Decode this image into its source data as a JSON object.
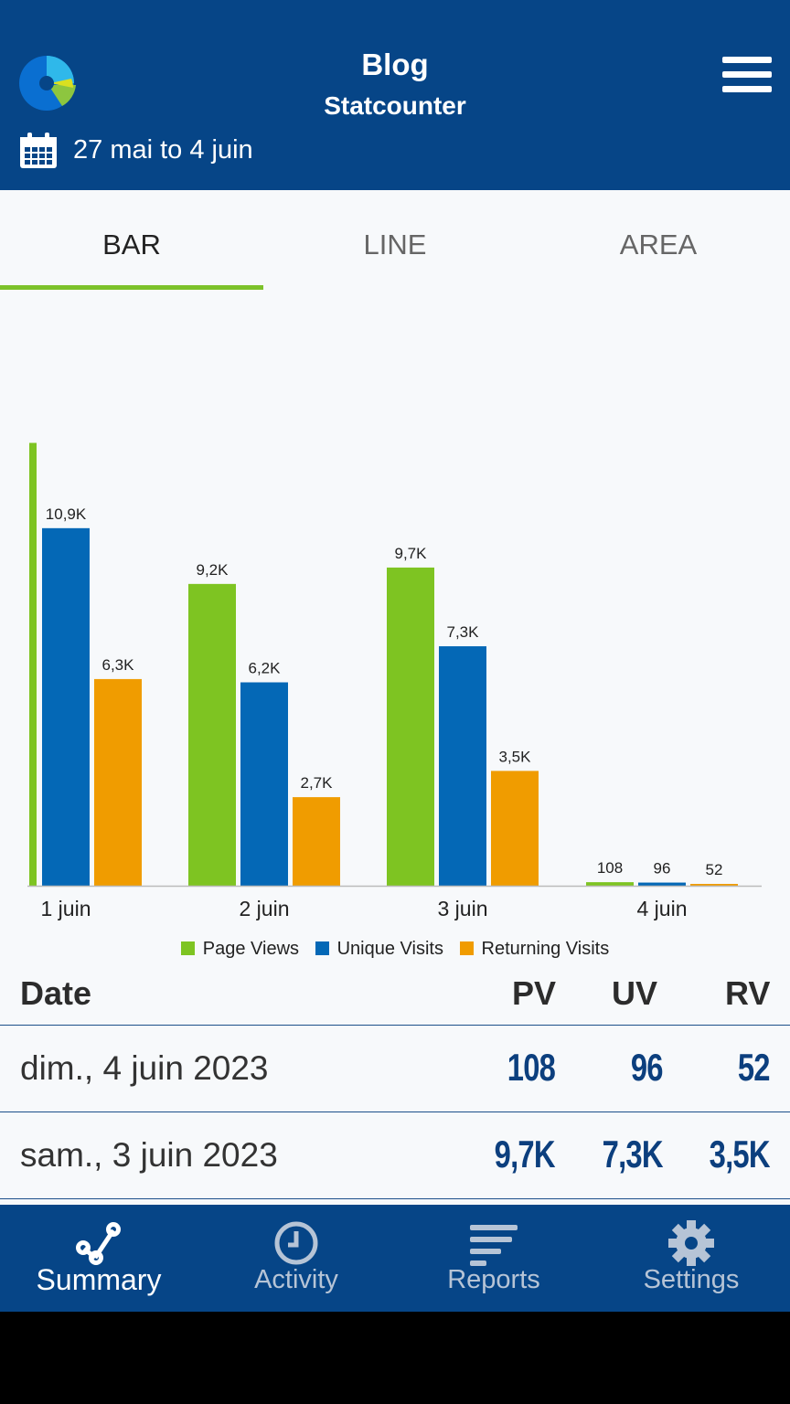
{
  "header": {
    "title": "Blog",
    "subtitle": "Statcounter",
    "date_range": "27 mai to 4 juin",
    "colors": {
      "background": "#064587",
      "logo_blue": "#0a6fd1",
      "logo_light": "#2fb8ea",
      "logo_green": "#8dc63f"
    }
  },
  "tabs": [
    {
      "label": "BAR",
      "active": true
    },
    {
      "label": "LINE",
      "active": false
    },
    {
      "label": "AREA",
      "active": false
    }
  ],
  "chart_data": {
    "type": "bar",
    "categories": [
      "1 juin",
      "2 juin",
      "3 juin",
      "4 juin"
    ],
    "series": [
      {
        "name": "Page Views",
        "color": "#7ec422",
        "values": [
          13500,
          9200,
          9700,
          108
        ],
        "labels": [
          "",
          "9,2K",
          "9,7K",
          "108"
        ]
      },
      {
        "name": "Unique Visits",
        "color": "#0468b6",
        "values": [
          10900,
          6200,
          7300,
          96
        ],
        "labels": [
          "10,9K",
          "6,2K",
          "7,3K",
          "96"
        ]
      },
      {
        "name": "Returning Visits",
        "color": "#f09c00",
        "values": [
          6300,
          2700,
          3500,
          52
        ],
        "labels": [
          "6,3K",
          "2,7K",
          "3,5K",
          "52"
        ]
      }
    ],
    "ylim": [
      0,
      14100
    ],
    "legend_position": "bottom",
    "grid": false
  },
  "table": {
    "headers": {
      "date": "Date",
      "pv": "PV",
      "uv": "UV",
      "rv": "RV"
    },
    "rows": [
      {
        "date": "dim., 4 juin 2023",
        "pv": "108",
        "uv": "96",
        "rv": "52"
      },
      {
        "date": "sam., 3 juin 2023",
        "pv": "9,7K",
        "uv": "7,3K",
        "rv": "3,5K"
      }
    ]
  },
  "bottom_nav": [
    {
      "label": "Summary",
      "icon": "summary-icon",
      "active": true
    },
    {
      "label": "Activity",
      "icon": "clock-icon",
      "active": false
    },
    {
      "label": "Reports",
      "icon": "reports-icon",
      "active": false
    },
    {
      "label": "Settings",
      "icon": "gear-icon",
      "active": false
    }
  ]
}
